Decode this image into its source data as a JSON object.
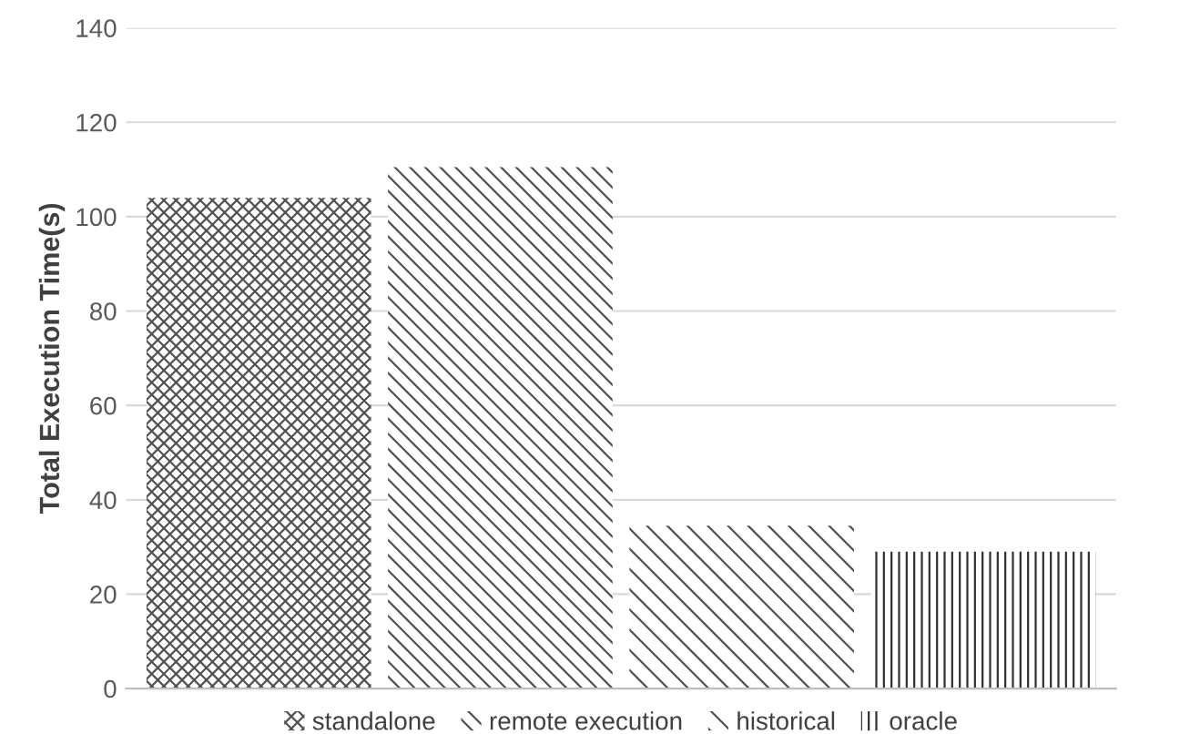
{
  "chart_data": {
    "type": "bar",
    "ylabel": "Total Execution Time(s)",
    "categories": [
      null,
      null,
      null,
      null
    ],
    "series": [
      {
        "name": "standalone",
        "color": "#505050",
        "values": [
          104,
          null,
          null,
          null
        ]
      },
      {
        "name": "remote execution",
        "color": "#505050",
        "values": [
          null,
          110.5,
          null,
          null
        ]
      },
      {
        "name": "historical",
        "color": "#505050",
        "values": [
          null,
          null,
          34.5,
          null
        ]
      },
      {
        "name": "oracle",
        "color": "#303030",
        "values": [
          null,
          null,
          null,
          29
        ]
      }
    ],
    "ylim": [
      0,
      140
    ],
    "yticks": [
      0,
      20,
      40,
      60,
      80,
      100,
      120,
      140
    ],
    "grid": "y",
    "legend": "bottom"
  }
}
